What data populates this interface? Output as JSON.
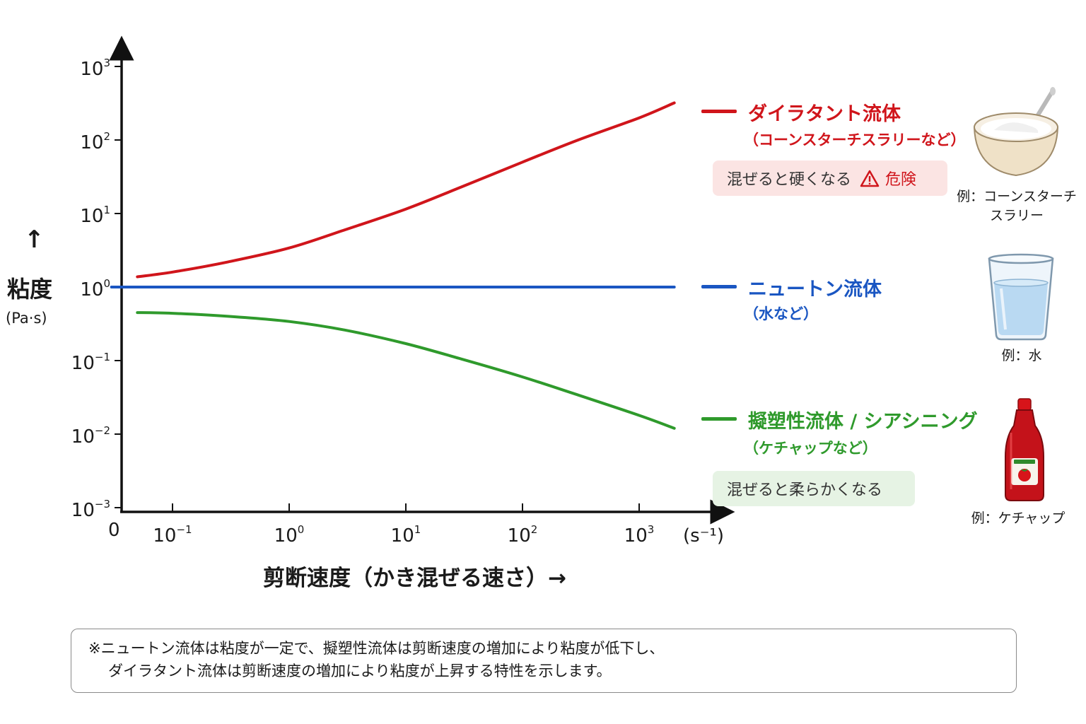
{
  "chart_data": {
    "type": "line",
    "xscale": "log",
    "yscale": "log",
    "xlabel": "剪断速度（かき混ぜる速さ）→",
    "x_unit": "(s⁻¹)",
    "x_origin_label": "0",
    "ylabel": "粘度",
    "y_unit": "(Pa·s)",
    "x_ticks": [
      "10^-1",
      "10^0",
      "10^1",
      "10^2",
      "10^3"
    ],
    "y_ticks": [
      "10^-3",
      "10^-2",
      "10^-1",
      "10^0",
      "10^1",
      "10^2",
      "10^3"
    ],
    "ylim": [
      0.001,
      1000
    ],
    "series": [
      {
        "name": "ダイラタント流体",
        "subtitle": "（コーンスターチスラリーなど）",
        "badge": "混ぜると硬くなる",
        "badge_warning": "危険",
        "example": "例：コーンスターチスラリー",
        "color": "#d0151b",
        "x": [
          0.05,
          0.1,
          0.3,
          1,
          3,
          10,
          30,
          100,
          300,
          1000,
          2000
        ],
        "y": [
          1.38,
          1.6,
          2.2,
          3.4,
          6.0,
          11.5,
          23,
          50,
          100,
          200,
          320
        ]
      },
      {
        "name": "ニュートン流体",
        "subtitle": "（水など）",
        "example": "例：水",
        "color": "#1a56c2",
        "x": [
          0.03,
          2000
        ],
        "y": [
          1,
          1
        ]
      },
      {
        "name": "擬塑性流体 / シアシニング",
        "subtitle": "（ケチャップなど）",
        "badge": "混ぜると柔らかくなる",
        "example": "例：ケチャップ",
        "color": "#2f9a2c",
        "x": [
          0.05,
          0.1,
          0.3,
          1,
          3,
          10,
          30,
          100,
          300,
          1000,
          2000
        ],
        "y": [
          0.45,
          0.44,
          0.4,
          0.34,
          0.26,
          0.17,
          0.105,
          0.06,
          0.034,
          0.018,
          0.012
        ]
      }
    ]
  },
  "axis": {
    "ylabel": "粘度",
    "y_unit": "(Pa·s)",
    "xlabel": "剪断速度（かき混ぜる速さ）→",
    "x_unit": "(s⁻¹)",
    "origin": "0"
  },
  "legend": {
    "dilatant": {
      "title": "ダイラタント流体",
      "subtitle": "（コーンスターチスラリーなど）",
      "badge": "混ぜると硬くなる",
      "warning": "危険",
      "example": "例：コーンスターチ\nスラリー"
    },
    "newtonian": {
      "title": "ニュートン流体",
      "subtitle": "（水など）",
      "example": "例：水"
    },
    "shear": {
      "title": "擬塑性流体 / シアシニング",
      "subtitle": "（ケチャップなど）",
      "badge": "混ぜると柔らかくなる",
      "example": "例：ケチャップ"
    }
  },
  "colors": {
    "dilatant": "#d0151b",
    "newtonian": "#1a56c2",
    "shear": "#2f9a2c",
    "dilatant_badge_bg": "#fbe4e3",
    "shear_badge_bg": "#e6f3e4"
  },
  "icons": [
    "bowl-spoon-icon",
    "water-glass-icon",
    "ketchup-bottle-icon",
    "warning-icon"
  ],
  "note": {
    "line1": "※ニュートン流体は粘度が一定で、擬塑性流体は剪断速度の増加により粘度が低下し、",
    "line2": "ダイラタント流体は剪断速度の増加により粘度が上昇する特性を示します。"
  }
}
